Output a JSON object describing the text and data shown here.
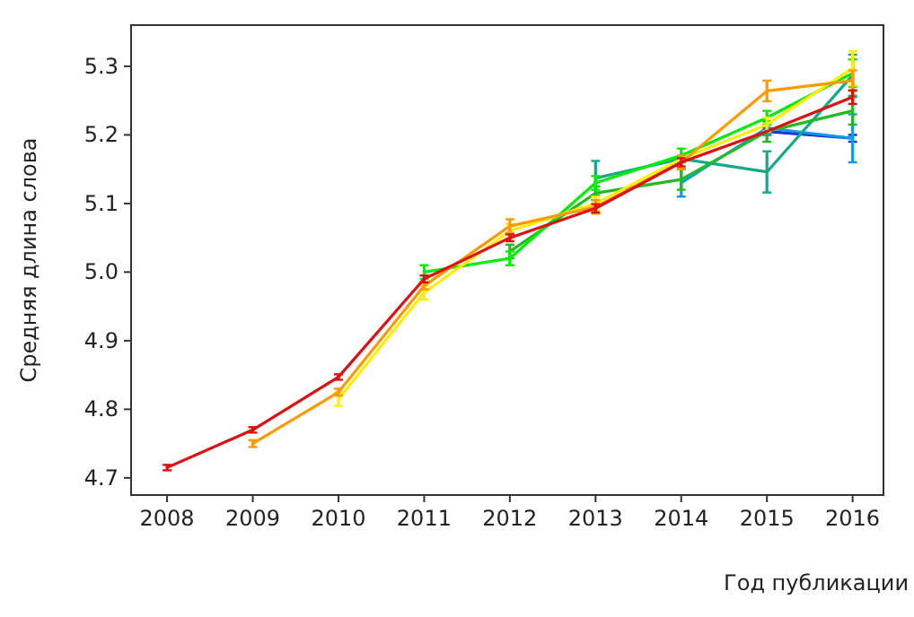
{
  "chart_data": {
    "type": "line",
    "xlabel": "Год публикации",
    "ylabel": "Средняя длина слова",
    "x": [
      2008,
      2009,
      2010,
      2011,
      2012,
      2013,
      2014,
      2015,
      2016
    ],
    "xlim": [
      2007.58,
      2016.36
    ],
    "ylim": [
      4.675,
      5.36
    ],
    "xticks": [
      2008,
      2009,
      2010,
      2011,
      2012,
      2013,
      2014,
      2015,
      2016
    ],
    "yticks": [
      4.7,
      4.8,
      4.9,
      {
        "value": 5,
        "label": "5.0"
      },
      5.1,
      5.2,
      5.3
    ],
    "grid": false,
    "marker": "none",
    "line_style": "solid",
    "series": [
      {
        "color": "#1133dd",
        "values": [
          null,
          null,
          null,
          null,
          null,
          null,
          null,
          5.205,
          5.195
        ],
        "errors": [
          null,
          null,
          null,
          null,
          null,
          null,
          null,
          0.005,
          0.005
        ]
      },
      {
        "color": "#1199ee",
        "values": [
          null,
          null,
          null,
          null,
          null,
          null,
          5.13,
          5.21,
          5.195
        ],
        "errors": [
          null,
          null,
          null,
          null,
          null,
          null,
          0.02,
          0.01,
          0.035
        ]
      },
      {
        "color": "#11aa88",
        "values": [
          null,
          null,
          null,
          null,
          null,
          5.137,
          5.165,
          5.146,
          5.287
        ],
        "errors": [
          null,
          null,
          null,
          null,
          null,
          0.025,
          null,
          0.03,
          0.03
        ]
      },
      {
        "color": "#22bb22",
        "values": [
          null,
          null,
          null,
          null,
          5.03,
          5.115,
          5.135,
          5.205,
          5.235
        ],
        "errors": [
          null,
          null,
          null,
          null,
          0.01,
          0.01,
          0.015,
          0.015,
          0.02
        ]
      },
      {
        "color": "#00ee00",
        "values": [
          null,
          null,
          null,
          5.0,
          5.02,
          5.13,
          5.17,
          5.225,
          5.29
        ],
        "errors": [
          null,
          null,
          null,
          0.01,
          0.01,
          0.01,
          0.01,
          0.01,
          0.02
        ]
      },
      {
        "color": "#ffee00",
        "values": [
          null,
          null,
          4.815,
          4.97,
          5.06,
          5.1,
          5.165,
          5.215,
          5.297
        ],
        "errors": [
          null,
          null,
          0.01,
          0.01,
          0.01,
          0.01,
          null,
          0.01,
          0.025
        ]
      },
      {
        "color": "#ff9900",
        "values": [
          null,
          4.75,
          4.825,
          4.98,
          5.067,
          5.095,
          5.16,
          5.264,
          5.279
        ],
        "errors": [
          null,
          0.005,
          0.005,
          0.005,
          0.01,
          0.01,
          0.01,
          0.015,
          0.015
        ]
      },
      {
        "color": "#dd1111",
        "values": [
          4.715,
          4.77,
          4.847,
          4.99,
          5.05,
          5.093,
          5.16,
          5.205,
          5.255
        ],
        "errors": [
          0.004,
          0.004,
          0.004,
          0.005,
          0.005,
          0.006,
          0.006,
          null,
          0.01
        ]
      }
    ]
  }
}
